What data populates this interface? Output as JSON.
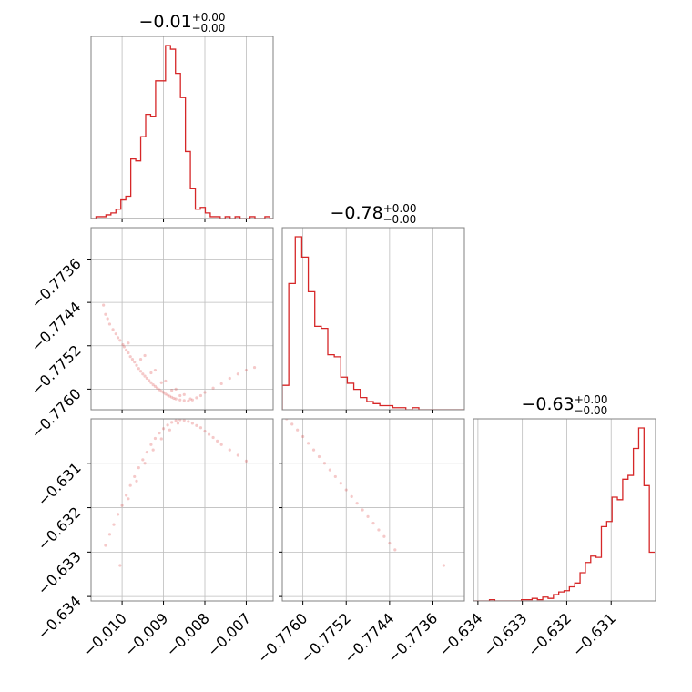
{
  "chart_data": {
    "type": "corner",
    "color": "#d62728",
    "grid": true,
    "parameters": [
      {
        "title": {
          "median": "−0.01",
          "upper": "+0.00",
          "lower": "−0.00"
        },
        "range": [
          -0.01075,
          -0.00635
        ],
        "ticks": [
          -0.01,
          -0.009,
          -0.008,
          -0.007
        ],
        "tick_labels": [
          "−0.010",
          "−0.009",
          "−0.008",
          "−0.007"
        ],
        "hist_bins": [
          -0.01075,
          -0.01063,
          -0.01051,
          -0.01039,
          -0.01027,
          -0.01015,
          -0.01003,
          -0.00991,
          -0.00979,
          -0.00967,
          -0.00955,
          -0.00943,
          -0.00931,
          -0.00919,
          -0.00907,
          -0.00895,
          -0.00883,
          -0.00871,
          -0.00859,
          -0.00847,
          -0.00835,
          -0.00823,
          -0.00811,
          -0.00799,
          -0.00787,
          -0.00775,
          -0.00763,
          -0.00751,
          -0.00739,
          -0.00727,
          -0.00715,
          -0.00703,
          -0.00691,
          -0.00679,
          -0.00667,
          -0.00655,
          -0.00643,
          -0.00635
        ],
        "hist_counts": [
          0,
          1,
          1,
          2,
          3,
          5,
          10,
          12,
          32,
          31,
          44,
          56,
          55,
          74,
          74,
          93,
          91,
          78,
          65,
          36,
          16,
          5,
          6,
          3,
          1,
          1,
          0,
          1,
          0,
          1,
          0,
          0,
          1,
          0,
          0,
          1,
          0
        ]
      },
      {
        "title": {
          "median": "−0.78",
          "upper": "+0.00",
          "lower": "−0.00"
        },
        "range": [
          -0.77638,
          -0.77302
        ],
        "ticks": [
          -0.776,
          -0.7752,
          -0.7744,
          -0.7736
        ],
        "tick_labels": [
          "−0.7760",
          "−0.7752",
          "−0.7744",
          "−0.7736"
        ],
        "hist_bins": [
          -0.77638,
          -0.77626,
          -0.77614,
          -0.77602,
          -0.7759,
          -0.77578,
          -0.77566,
          -0.77554,
          -0.77542,
          -0.7753,
          -0.77518,
          -0.77506,
          -0.77494,
          -0.77482,
          -0.7747,
          -0.77458,
          -0.77446,
          -0.77434,
          -0.77422,
          -0.7741,
          -0.77398,
          -0.77386,
          -0.77374,
          -0.77362,
          -0.7735,
          -0.77338,
          -0.77326,
          -0.77314,
          -0.77302
        ],
        "hist_counts": [
          12,
          62,
          85,
          75,
          58,
          41,
          40,
          27,
          26,
          16,
          13,
          10,
          6,
          4,
          3,
          2,
          2,
          1,
          1,
          0,
          1,
          0,
          0,
          0,
          0,
          0,
          0,
          0
        ]
      },
      {
        "title": {
          "median": "−0.63",
          "upper": "+0.00",
          "lower": "−0.00"
        },
        "range": [
          -0.6341,
          -0.63
        ],
        "ticks": [
          -0.634,
          -0.633,
          -0.632,
          -0.631
        ],
        "tick_labels": [
          "−0.634",
          "−0.633",
          "−0.632",
          "−0.631"
        ],
        "hist_bins": [
          -0.6341,
          -0.63398,
          -0.63386,
          -0.63374,
          -0.63362,
          -0.6335,
          -0.63338,
          -0.63326,
          -0.63314,
          -0.63302,
          -0.6329,
          -0.63278,
          -0.63266,
          -0.63254,
          -0.63242,
          -0.6323,
          -0.63218,
          -0.63206,
          -0.63194,
          -0.63182,
          -0.6317,
          -0.63158,
          -0.63146,
          -0.63134,
          -0.63122,
          -0.6311,
          -0.63098,
          -0.63086,
          -0.63074,
          -0.63062,
          -0.6305,
          -0.63038,
          -0.63026,
          -0.63014,
          -0.63002
        ],
        "hist_counts": [
          0,
          0,
          0,
          1,
          0,
          0,
          0,
          0,
          0,
          1,
          1,
          2,
          1,
          3,
          2,
          5,
          7,
          8,
          11,
          14,
          22,
          30,
          35,
          34,
          58,
          62,
          81,
          79,
          95,
          98,
          119,
          135,
          90,
          38
        ]
      }
    ],
    "scatter_1_0": {
      "x": [
        -0.01045,
        -0.0104,
        -0.01035,
        -0.0103,
        -0.01022,
        -0.01015,
        -0.0101,
        -0.01005,
        -0.00998,
        -0.00995,
        -0.0099,
        -0.00985,
        -0.0098,
        -0.00975,
        -0.0097,
        -0.00965,
        -0.0096,
        -0.00955,
        -0.0095,
        -0.00945,
        -0.0094,
        -0.00935,
        -0.0093,
        -0.00925,
        -0.0092,
        -0.00915,
        -0.0091,
        -0.00905,
        -0.009,
        -0.00895,
        -0.0089,
        -0.00885,
        -0.0088,
        -0.00875,
        -0.0087,
        -0.0086,
        -0.0085,
        -0.0084,
        -0.0083,
        -0.0082,
        -0.0081,
        -0.008,
        -0.0078,
        -0.0076,
        -0.0074,
        -0.0072,
        -0.007,
        -0.0068,
        -0.00985,
        -0.00955,
        -0.0093,
        -0.00905,
        -0.0088,
        -0.0086,
        -0.00945,
        -0.0092,
        -0.00895,
        -0.0087,
        -0.0085,
        -0.00835
      ],
      "y": [
        -0.77445,
        -0.77462,
        -0.7747,
        -0.7748,
        -0.7749,
        -0.77498,
        -0.77505,
        -0.7751,
        -0.77518,
        -0.77522,
        -0.77528,
        -0.77533,
        -0.7754,
        -0.77545,
        -0.7755,
        -0.77556,
        -0.77562,
        -0.77567,
        -0.77572,
        -0.77576,
        -0.7758,
        -0.77584,
        -0.77588,
        -0.77592,
        -0.77595,
        -0.77598,
        -0.77601,
        -0.77604,
        -0.77606,
        -0.77609,
        -0.77611,
        -0.77613,
        -0.77615,
        -0.77617,
        -0.77618,
        -0.7762,
        -0.77621,
        -0.77622,
        -0.7762,
        -0.77616,
        -0.77612,
        -0.77606,
        -0.77598,
        -0.7759,
        -0.7758,
        -0.77572,
        -0.77565,
        -0.7756,
        -0.77515,
        -0.77545,
        -0.7757,
        -0.77588,
        -0.77602,
        -0.77612,
        -0.77538,
        -0.77565,
        -0.77585,
        -0.776,
        -0.7761,
        -0.77618
      ]
    },
    "scatter_2_0": {
      "x": [
        -0.0104,
        -0.0103,
        -0.0102,
        -0.0101,
        -0.01,
        -0.0099,
        -0.0098,
        -0.0097,
        -0.0096,
        -0.0095,
        -0.0094,
        -0.0093,
        -0.0092,
        -0.0091,
        -0.009,
        -0.0089,
        -0.0088,
        -0.0087,
        -0.0086,
        -0.0085,
        -0.0084,
        -0.0083,
        -0.0082,
        -0.0081,
        -0.008,
        -0.0079,
        -0.0078,
        -0.0077,
        -0.0076,
        -0.0074,
        -0.0072,
        -0.007,
        -0.01005,
        -0.00985,
        -0.00965,
        -0.00945,
        -0.00925,
        -0.00905,
        -0.00885,
        -0.00865
      ],
      "y": [
        -0.63285,
        -0.6326,
        -0.63238,
        -0.63215,
        -0.63195,
        -0.63172,
        -0.6315,
        -0.6313,
        -0.6311,
        -0.63092,
        -0.63075,
        -0.63058,
        -0.63044,
        -0.63032,
        -0.63022,
        -0.63014,
        -0.63008,
        -0.63004,
        -0.63002,
        -0.63003,
        -0.63006,
        -0.6301,
        -0.63015,
        -0.6302,
        -0.63028,
        -0.63035,
        -0.63042,
        -0.6305,
        -0.63058,
        -0.6307,
        -0.63082,
        -0.63095,
        -0.6333,
        -0.6318,
        -0.6314,
        -0.631,
        -0.6307,
        -0.63045,
        -0.63025,
        -0.6301
      ]
    },
    "scatter_2_1": {
      "x": [
        -0.7763,
        -0.7762,
        -0.7761,
        -0.776,
        -0.7759,
        -0.7758,
        -0.7757,
        -0.7756,
        -0.7755,
        -0.7754,
        -0.7753,
        -0.7752,
        -0.7751,
        -0.775,
        -0.7749,
        -0.7748,
        -0.7747,
        -0.7746,
        -0.7745,
        -0.7744,
        -0.7743,
        -0.7734
      ],
      "y": [
        -0.63,
        -0.63012,
        -0.63025,
        -0.6304,
        -0.63055,
        -0.6307,
        -0.63085,
        -0.631,
        -0.63115,
        -0.6313,
        -0.63145,
        -0.6316,
        -0.63175,
        -0.6319,
        -0.63205,
        -0.6322,
        -0.63235,
        -0.6325,
        -0.63265,
        -0.6328,
        -0.63295,
        -0.6333
      ]
    }
  }
}
